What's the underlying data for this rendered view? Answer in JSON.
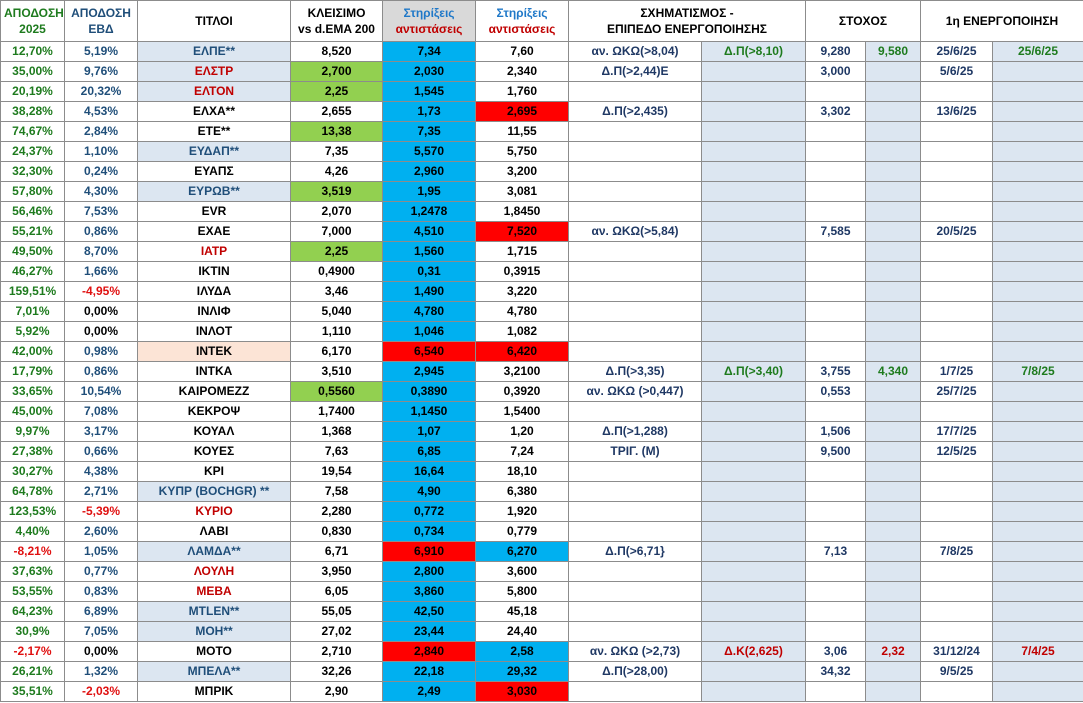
{
  "headers": {
    "perf2025": [
      "ΑΠΟΔΟΣΗ",
      "2025"
    ],
    "perfWeek": [
      "ΑΠΟΔΟΣΗ",
      "ΕΒΔ"
    ],
    "titles": "ΤΙΤΛΟΙ",
    "close": [
      "ΚΛΕΙΣΙΜΟ",
      "vs d.EMA 200"
    ],
    "support1": [
      "Στηρίξεις",
      "αντιστάσεις"
    ],
    "support2": [
      "Στηρίξεις",
      "αντιστάσεις"
    ],
    "pattern": [
      "ΣΧΗΜΑΤΙΣΜΟΣ -",
      "ΕΠΙΠΕΔΟ ΕΝΕΡΓΟΠΟΙΗΣΗΣ"
    ],
    "target": "ΣΤΟΧΟΣ",
    "activation": "1η ΕΝΕΡΓΟΠΟΙΗΣΗ"
  },
  "colors": {
    "green": "#1e7b1e",
    "red": "#e01010",
    "cyan": "#00b0f0",
    "cellGreen": "#92d050",
    "cellRed": "#ff0000",
    "lightBlueGray": "#dce6f1"
  },
  "rows": [
    {
      "p25": "12,70%",
      "p25c": "green",
      "pw": "5,19%",
      "pwc": "blue",
      "t": "ΕΛΠΕ**",
      "tc": "blue",
      "tbg": "lightgray",
      "c": "8,520",
      "cbg": "",
      "s1": "7,34",
      "s1bg": "cyan",
      "s2": "7,60",
      "s2bg": "",
      "pat": "αν. ΩΚΩ(>8,04)",
      "lvl": "Δ.Π(>8,10)",
      "lvlc": "green",
      "tg": "9,280",
      "tg2": "9,580",
      "tg2c": "green",
      "d1": "25/6/25",
      "d2": "25/6/25",
      "d2c": "green"
    },
    {
      "p25": "35,00%",
      "p25c": "green",
      "pw": "9,76%",
      "pwc": "blue",
      "t": "ΕΛΣΤΡ",
      "tc": "darkred",
      "tbg": "lightgray",
      "c": "2,700",
      "cbg": "green",
      "s1": "2,030",
      "s1bg": "cyan",
      "s2": "2,340",
      "s2bg": "",
      "pat": "Δ.Π(>2,44)Ε",
      "lvl": "",
      "lvlc": "green",
      "tg": "3,000",
      "tg2": "",
      "tg2c": "green",
      "d1": "5/6/25",
      "d2": "",
      "d2c": "green"
    },
    {
      "p25": "20,19%",
      "p25c": "green",
      "pw": "20,32%",
      "pwc": "blue",
      "t": "ΕΛΤΟΝ",
      "tc": "darkred",
      "tbg": "lightgray",
      "c": "2,25",
      "cbg": "green",
      "s1": "1,545",
      "s1bg": "cyan",
      "s2": "1,760",
      "s2bg": "",
      "pat": "",
      "lvl": "",
      "lvlc": "green",
      "tg": "",
      "tg2": "",
      "tg2c": "green",
      "d1": "",
      "d2": "",
      "d2c": "green"
    },
    {
      "p25": "38,28%",
      "p25c": "green",
      "pw": "4,53%",
      "pwc": "blue",
      "t": "ΕΛΧΑ**",
      "tc": "black",
      "tbg": "",
      "c": "2,655",
      "cbg": "",
      "s1": "1,73",
      "s1bg": "cyan",
      "s2": "2,695",
      "s2bg": "red",
      "pat": "Δ.Π(>2,435)",
      "lvl": "",
      "lvlc": "green",
      "tg": "3,302",
      "tg2": "",
      "tg2c": "green",
      "d1": "13/6/25",
      "d2": "",
      "d2c": "green"
    },
    {
      "p25": "74,67%",
      "p25c": "green",
      "pw": "2,84%",
      "pwc": "blue",
      "t": "ΕΤΕ**",
      "tc": "black",
      "tbg": "",
      "c": "13,38",
      "cbg": "green",
      "s1": "7,35",
      "s1bg": "cyan",
      "s2": "11,55",
      "s2bg": "",
      "pat": "",
      "lvl": "",
      "lvlc": "green",
      "tg": "",
      "tg2": "",
      "tg2c": "green",
      "d1": "",
      "d2": "",
      "d2c": "green"
    },
    {
      "p25": "24,37%",
      "p25c": "green",
      "pw": "1,10%",
      "pwc": "blue",
      "t": "ΕΥΔΑΠ**",
      "tc": "blue",
      "tbg": "lightgray",
      "c": "7,35",
      "cbg": "",
      "s1": "5,570",
      "s1bg": "cyan",
      "s2": "5,750",
      "s2bg": "",
      "pat": "",
      "lvl": "",
      "lvlc": "green",
      "tg": "",
      "tg2": "",
      "tg2c": "green",
      "d1": "",
      "d2": "",
      "d2c": "green"
    },
    {
      "p25": "32,30%",
      "p25c": "green",
      "pw": "0,24%",
      "pwc": "blue",
      "t": "ΕΥΑΠΣ",
      "tc": "black",
      "tbg": "",
      "c": "4,26",
      "cbg": "",
      "s1": "2,960",
      "s1bg": "cyan",
      "s2": "3,200",
      "s2bg": "",
      "pat": "",
      "lvl": "",
      "lvlc": "green",
      "tg": "",
      "tg2": "",
      "tg2c": "green",
      "d1": "",
      "d2": "",
      "d2c": "green"
    },
    {
      "p25": "57,80%",
      "p25c": "green",
      "pw": "4,30%",
      "pwc": "blue",
      "t": "ΕΥΡΩΒ**",
      "tc": "blue",
      "tbg": "lightgray",
      "c": "3,519",
      "cbg": "green",
      "s1": "1,95",
      "s1bg": "cyan",
      "s2": "3,081",
      "s2bg": "",
      "pat": "",
      "lvl": "",
      "lvlc": "green",
      "tg": "",
      "tg2": "",
      "tg2c": "green",
      "d1": "",
      "d2": "",
      "d2c": "green"
    },
    {
      "p25": "56,46%",
      "p25c": "green",
      "pw": "7,53%",
      "pwc": "blue",
      "t": "EVR",
      "tc": "black",
      "tbg": "",
      "c": "2,070",
      "cbg": "",
      "s1": "1,2478",
      "s1bg": "cyan",
      "s2": "1,8450",
      "s2bg": "",
      "pat": "",
      "lvl": "",
      "lvlc": "green",
      "tg": "",
      "tg2": "",
      "tg2c": "green",
      "d1": "",
      "d2": "",
      "d2c": "green"
    },
    {
      "p25": "55,21%",
      "p25c": "green",
      "pw": "0,86%",
      "pwc": "blue",
      "t": "ΕΧΑΕ",
      "tc": "black",
      "tbg": "",
      "c": "7,000",
      "cbg": "",
      "s1": "4,510",
      "s1bg": "cyan",
      "s2": "7,520",
      "s2bg": "red",
      "pat": "αν. ΩΚΩ(>5,84)",
      "lvl": "",
      "lvlc": "green",
      "tg": "7,585",
      "tg2": "",
      "tg2c": "green",
      "d1": "20/5/25",
      "d2": "",
      "d2c": "green"
    },
    {
      "p25": "49,50%",
      "p25c": "green",
      "pw": "8,70%",
      "pwc": "blue",
      "t": "ΙΑΤΡ",
      "tc": "darkred",
      "tbg": "",
      "c": "2,25",
      "cbg": "green",
      "s1": "1,560",
      "s1bg": "cyan",
      "s2": "1,715",
      "s2bg": "",
      "pat": "",
      "lvl": "",
      "lvlc": "green",
      "tg": "",
      "tg2": "",
      "tg2c": "green",
      "d1": "",
      "d2": "",
      "d2c": "green"
    },
    {
      "p25": "46,27%",
      "p25c": "green",
      "pw": "1,66%",
      "pwc": "blue",
      "t": "ΙΚΤΙΝ",
      "tc": "black",
      "tbg": "",
      "c": "0,4900",
      "cbg": "",
      "s1": "0,31",
      "s1bg": "cyan",
      "s2": "0,3915",
      "s2bg": "",
      "pat": "",
      "lvl": "",
      "lvlc": "green",
      "tg": "",
      "tg2": "",
      "tg2c": "green",
      "d1": "",
      "d2": "",
      "d2c": "green"
    },
    {
      "p25": "159,51%",
      "p25c": "green",
      "pw": "-4,95%",
      "pwc": "red",
      "t": "ΙΛΥΔΑ",
      "tc": "black",
      "tbg": "",
      "c": "3,46",
      "cbg": "",
      "s1": "1,490",
      "s1bg": "cyan",
      "s2": "3,220",
      "s2bg": "",
      "pat": "",
      "lvl": "",
      "lvlc": "green",
      "tg": "",
      "tg2": "",
      "tg2c": "green",
      "d1": "",
      "d2": "",
      "d2c": "green"
    },
    {
      "p25": "7,01%",
      "p25c": "green",
      "pw": "0,00%",
      "pwc": "black",
      "t": "ΙΝΛΙΦ",
      "tc": "black",
      "tbg": "",
      "c": "5,040",
      "cbg": "",
      "s1": "4,780",
      "s1bg": "cyan",
      "s2": "4,780",
      "s2bg": "",
      "pat": "",
      "lvl": "",
      "lvlc": "green",
      "tg": "",
      "tg2": "",
      "tg2c": "green",
      "d1": "",
      "d2": "",
      "d2c": "green"
    },
    {
      "p25": "5,92%",
      "p25c": "green",
      "pw": "0,00%",
      "pwc": "black",
      "t": "ΙΝΛΟΤ",
      "tc": "black",
      "tbg": "",
      "c": "1,110",
      "cbg": "",
      "s1": "1,046",
      "s1bg": "cyan",
      "s2": "1,082",
      "s2bg": "",
      "pat": "",
      "lvl": "",
      "lvlc": "green",
      "tg": "",
      "tg2": "",
      "tg2c": "green",
      "d1": "",
      "d2": "",
      "d2c": "green"
    },
    {
      "p25": "42,00%",
      "p25c": "green",
      "pw": "0,98%",
      "pwc": "blue",
      "t": "ΙΝΤΕΚ",
      "tc": "black",
      "tbg": "peach",
      "c": "6,170",
      "cbg": "",
      "s1": "6,540",
      "s1bg": "red",
      "s2": "6,420",
      "s2bg": "red",
      "pat": "",
      "lvl": "",
      "lvlc": "green",
      "tg": "",
      "tg2": "",
      "tg2c": "green",
      "d1": "",
      "d2": "",
      "d2c": "green"
    },
    {
      "p25": "17,79%",
      "p25c": "green",
      "pw": "0,86%",
      "pwc": "blue",
      "t": "ΙΝΤΚΑ",
      "tc": "black",
      "tbg": "",
      "c": "3,510",
      "cbg": "",
      "s1": "2,945",
      "s1bg": "cyan",
      "s2": "3,2100",
      "s2bg": "",
      "pat": "Δ.Π(>3,35)",
      "lvl": "Δ.Π(>3,40)",
      "lvlc": "green",
      "tg": "3,755",
      "tg2": "4,340",
      "tg2c": "green",
      "d1": "1/7/25",
      "d2": "7/8/25",
      "d2c": "green"
    },
    {
      "p25": "33,65%",
      "p25c": "green",
      "pw": "10,54%",
      "pwc": "blue",
      "t": "ΚΑΙΡΟΜΕΖΖ",
      "tc": "black",
      "tbg": "",
      "c": "0,5560",
      "cbg": "green",
      "s1": "0,3890",
      "s1bg": "cyan",
      "s2": "0,3920",
      "s2bg": "",
      "pat": "αν. ΩΚΩ (>0,447)",
      "lvl": "",
      "lvlc": "green",
      "tg": "0,553",
      "tg2": "",
      "tg2c": "green",
      "d1": "25/7/25",
      "d2": "",
      "d2c": "green"
    },
    {
      "p25": "45,00%",
      "p25c": "green",
      "pw": "7,08%",
      "pwc": "blue",
      "t": "ΚΕΚΡΟΨ",
      "tc": "black",
      "tbg": "",
      "c": "1,7400",
      "cbg": "",
      "s1": "1,1450",
      "s1bg": "cyan",
      "s2": "1,5400",
      "s2bg": "",
      "pat": "",
      "lvl": "",
      "lvlc": "green",
      "tg": "",
      "tg2": "",
      "tg2c": "green",
      "d1": "",
      "d2": "",
      "d2c": "green"
    },
    {
      "p25": "9,97%",
      "p25c": "green",
      "pw": "3,17%",
      "pwc": "blue",
      "t": "ΚΟΥΑΛ",
      "tc": "black",
      "tbg": "",
      "c": "1,368",
      "cbg": "",
      "s1": "1,07",
      "s1bg": "cyan",
      "s2": "1,20",
      "s2bg": "",
      "pat": "Δ.Π(>1,288)",
      "lvl": "",
      "lvlc": "green",
      "tg": "1,506",
      "tg2": "",
      "tg2c": "green",
      "d1": "17/7/25",
      "d2": "",
      "d2c": "green"
    },
    {
      "p25": "27,38%",
      "p25c": "green",
      "pw": "0,66%",
      "pwc": "blue",
      "t": "ΚΟΥΕΣ",
      "tc": "black",
      "tbg": "",
      "c": "7,63",
      "cbg": "",
      "s1": "6,85",
      "s1bg": "cyan",
      "s2": "7,24",
      "s2bg": "",
      "pat": "ΤΡΙΓ. (Μ)",
      "lvl": "",
      "lvlc": "green",
      "tg": "9,500",
      "tg2": "",
      "tg2c": "green",
      "d1": "12/5/25",
      "d2": "",
      "d2c": "green"
    },
    {
      "p25": "30,27%",
      "p25c": "green",
      "pw": "4,38%",
      "pwc": "blue",
      "t": "ΚΡΙ",
      "tc": "black",
      "tbg": "",
      "c": "19,54",
      "cbg": "",
      "s1": "16,64",
      "s1bg": "cyan",
      "s2": "18,10",
      "s2bg": "",
      "pat": "",
      "lvl": "",
      "lvlc": "green",
      "tg": "",
      "tg2": "",
      "tg2c": "green",
      "d1": "",
      "d2": "",
      "d2c": "green"
    },
    {
      "p25": "64,78%",
      "p25c": "green",
      "pw": "2,71%",
      "pwc": "blue",
      "t": "ΚΥΠΡ (BOCHGR) **",
      "tc": "blue",
      "tbg": "lightgray",
      "c": "7,58",
      "cbg": "",
      "s1": "4,90",
      "s1bg": "cyan",
      "s2": "6,380",
      "s2bg": "",
      "pat": "",
      "lvl": "",
      "lvlc": "green",
      "tg": "",
      "tg2": "",
      "tg2c": "green",
      "d1": "",
      "d2": "",
      "d2c": "green"
    },
    {
      "p25": "123,53%",
      "p25c": "green",
      "pw": "-5,39%",
      "pwc": "red",
      "t": "ΚΥΡΙΟ",
      "tc": "darkred",
      "tbg": "",
      "c": "2,280",
      "cbg": "",
      "s1": "0,772",
      "s1bg": "cyan",
      "s2": "1,920",
      "s2bg": "",
      "pat": "",
      "lvl": "",
      "lvlc": "green",
      "tg": "",
      "tg2": "",
      "tg2c": "green",
      "d1": "",
      "d2": "",
      "d2c": "green"
    },
    {
      "p25": "4,40%",
      "p25c": "green",
      "pw": "2,60%",
      "pwc": "blue",
      "t": "ΛΑΒΙ",
      "tc": "black",
      "tbg": "",
      "c": "0,830",
      "cbg": "",
      "s1": "0,734",
      "s1bg": "cyan",
      "s2": "0,779",
      "s2bg": "",
      "pat": "",
      "lvl": "",
      "lvlc": "green",
      "tg": "",
      "tg2": "",
      "tg2c": "green",
      "d1": "",
      "d2": "",
      "d2c": "green"
    },
    {
      "p25": "-8,21%",
      "p25c": "red",
      "pw": "1,05%",
      "pwc": "blue",
      "t": "ΛΑΜΔΑ**",
      "tc": "blue",
      "tbg": "lightgray",
      "c": "6,71",
      "cbg": "",
      "s1": "6,910",
      "s1bg": "red",
      "s2": "6,270",
      "s2bg": "cyan",
      "pat": "Δ.Π(>6,71}",
      "lvl": "",
      "lvlc": "green",
      "tg": "7,13",
      "tg2": "",
      "tg2c": "green",
      "d1": "7/8/25",
      "d2": "",
      "d2c": "green"
    },
    {
      "p25": "37,63%",
      "p25c": "green",
      "pw": "0,77%",
      "pwc": "blue",
      "t": "ΛΟΥΛΗ",
      "tc": "darkred",
      "tbg": "",
      "c": "3,950",
      "cbg": "",
      "s1": "2,800",
      "s1bg": "cyan",
      "s2": "3,600",
      "s2bg": "",
      "pat": "",
      "lvl": "",
      "lvlc": "green",
      "tg": "",
      "tg2": "",
      "tg2c": "green",
      "d1": "",
      "d2": "",
      "d2c": "green"
    },
    {
      "p25": "53,55%",
      "p25c": "green",
      "pw": "0,83%",
      "pwc": "blue",
      "t": "ΜΕΒΑ",
      "tc": "darkred",
      "tbg": "",
      "c": "6,05",
      "cbg": "",
      "s1": "3,860",
      "s1bg": "cyan",
      "s2": "5,800",
      "s2bg": "",
      "pat": "",
      "lvl": "",
      "lvlc": "green",
      "tg": "",
      "tg2": "",
      "tg2c": "green",
      "d1": "",
      "d2": "",
      "d2c": "green"
    },
    {
      "p25": "64,23%",
      "p25c": "green",
      "pw": "6,89%",
      "pwc": "blue",
      "t": "MTLEN**",
      "tc": "blue",
      "tbg": "lightgray",
      "c": "55,05",
      "cbg": "",
      "s1": "42,50",
      "s1bg": "cyan",
      "s2": "45,18",
      "s2bg": "",
      "pat": "",
      "lvl": "",
      "lvlc": "green",
      "tg": "",
      "tg2": "",
      "tg2c": "green",
      "d1": "",
      "d2": "",
      "d2c": "green"
    },
    {
      "p25": "30,9%",
      "p25c": "green",
      "pw": "7,05%",
      "pwc": "blue",
      "t": "ΜΟΗ**",
      "tc": "blue",
      "tbg": "lightgray",
      "c": "27,02",
      "cbg": "",
      "s1": "23,44",
      "s1bg": "cyan",
      "s2": "24,40",
      "s2bg": "",
      "pat": "",
      "lvl": "",
      "lvlc": "green",
      "tg": "",
      "tg2": "",
      "tg2c": "green",
      "d1": "",
      "d2": "",
      "d2c": "green"
    },
    {
      "p25": "-2,17%",
      "p25c": "red",
      "pw": "0,00%",
      "pwc": "black",
      "t": "ΜΟΤΟ",
      "tc": "black",
      "tbg": "",
      "c": "2,710",
      "cbg": "",
      "s1": "2,840",
      "s1bg": "red",
      "s2": "2,58",
      "s2bg": "cyan",
      "pat": "αν. ΩΚΩ (>2,73)",
      "lvl": "Δ.Κ(2,625)",
      "lvlc": "red",
      "tg": "3,06",
      "tg2": "2,32",
      "tg2c": "red",
      "d1": "31/12/24",
      "d2": "7/4/25",
      "d2c": "red"
    },
    {
      "p25": "26,21%",
      "p25c": "green",
      "pw": "1,32%",
      "pwc": "blue",
      "t": "ΜΠΕΛΑ**",
      "tc": "blue",
      "tbg": "lightgray",
      "c": "32,26",
      "cbg": "",
      "s1": "22,18",
      "s1bg": "cyan",
      "s2": "29,32",
      "s2bg": "cyan",
      "pat": "Δ.Π(>28,00)",
      "lvl": "",
      "lvlc": "green",
      "tg": "34,32",
      "tg2": "",
      "tg2c": "green",
      "d1": "9/5/25",
      "d2": "",
      "d2c": "green"
    },
    {
      "p25": "35,51%",
      "p25c": "green",
      "pw": "-2,03%",
      "pwc": "red",
      "t": "ΜΠΡΙΚ",
      "tc": "black",
      "tbg": "",
      "c": "2,90",
      "cbg": "",
      "s1": "2,49",
      "s1bg": "cyan",
      "s2": "3,030",
      "s2bg": "red",
      "pat": "",
      "lvl": "",
      "lvlc": "green",
      "tg": "",
      "tg2": "",
      "tg2c": "green",
      "d1": "",
      "d2": "",
      "d2c": "green"
    }
  ]
}
